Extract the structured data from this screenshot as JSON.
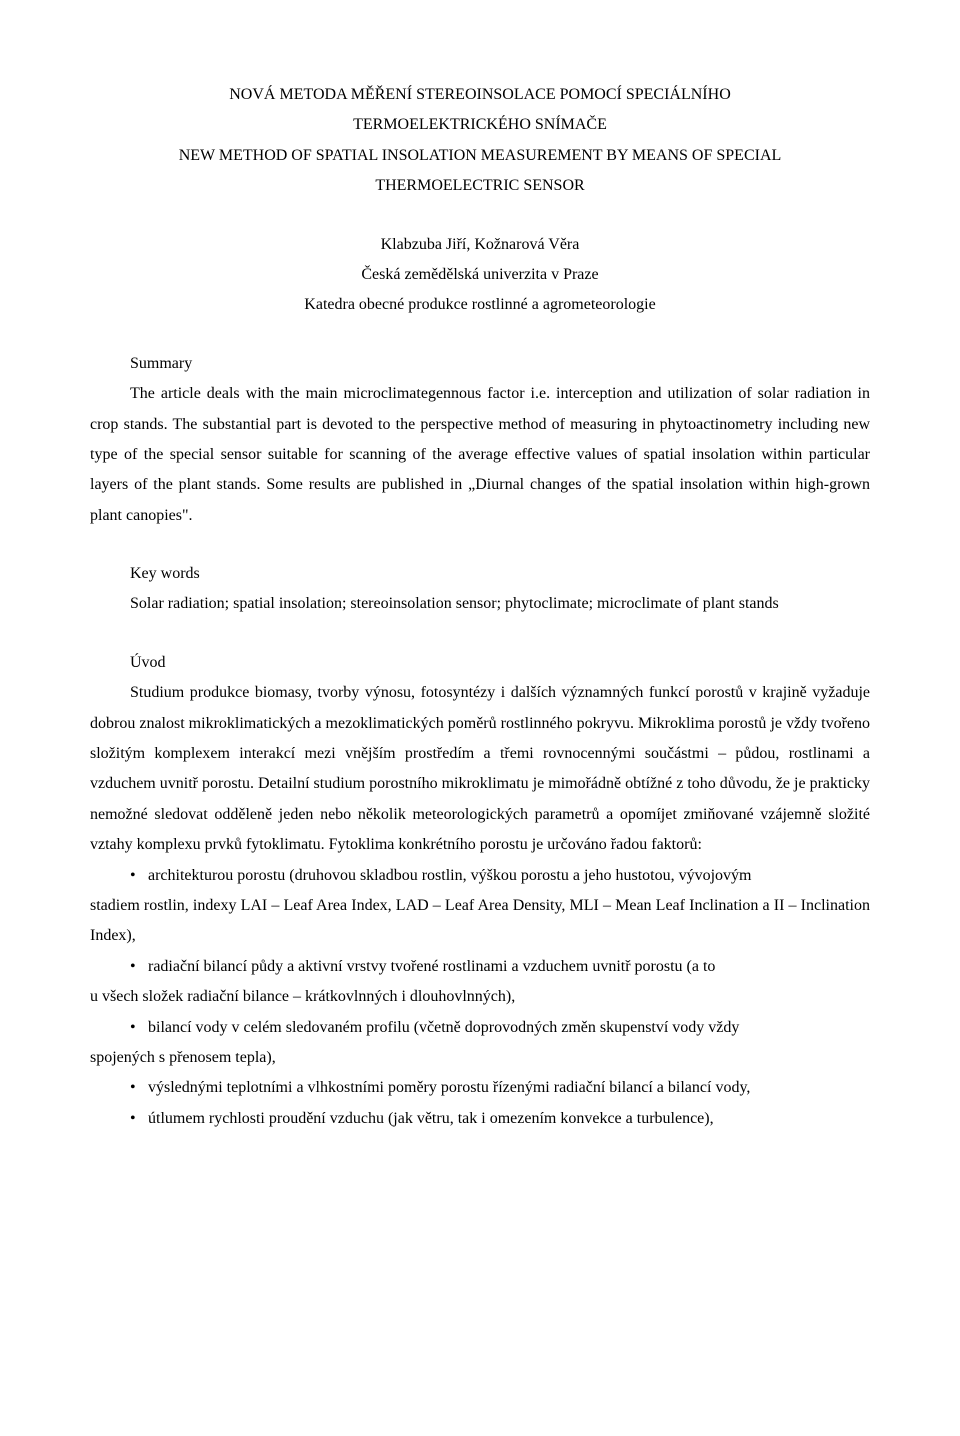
{
  "title": {
    "line1": "NOVÁ METODA MĚŘENÍ STEREOINSOLACE POMOCÍ SPECIÁLNÍHO",
    "line2": "TERMOELEKTRICKÉHO SNÍMAČE",
    "line3": "NEW METHOD OF SPATIAL INSOLATION MEASUREMENT BY MEANS OF SPECIAL",
    "line4": "THERMOELECTRIC SENSOR"
  },
  "authors": "Klabzuba Jiří, Kožnarová Věra",
  "affil": {
    "line1": "Česká zemědělská univerzita v Praze",
    "line2": "Katedra obecné produkce rostlinné a agrometeorologie"
  },
  "summary": {
    "heading": "Summary",
    "text": "The article deals with the main microclimategennous factor i.e. interception and utilization of solar radiation in crop stands. The substantial part is devoted to the perspective method of measuring in phytoactinometry including new type of the special sensor suitable for scanning of the average effective values of spatial insolation within particular layers of the plant stands. Some results are published in „Diurnal changes of the spatial insolation within high-grown plant canopies\"."
  },
  "keywords": {
    "heading": "Key words",
    "text": "Solar radiation; spatial insolation; stereoinsolation sensor; phytoclimate; microclimate of plant stands"
  },
  "uvod": {
    "heading": "Úvod",
    "p1": "Studium produkce biomasy, tvorby výnosu, fotosyntézy i dalších významných  funkcí porostů v krajině vyžaduje dobrou znalost mikroklimatických a mezoklimatických poměrů rostlinného pokryvu. Mikroklima porostů je vždy tvořeno složitým komplexem interakcí mezi vnějším prostředím a třemi rovnocennými součástmi – půdou, rostlinami a vzduchem uvnitř porostu. Detailní studium porostního mikroklimatu je mimořádně obtížné z toho důvodu, že je prakticky nemožné sledovat odděleně jeden nebo několik meteorologických parametrů a opomíjet zmiňované vzájemně složité vztahy komplexu prvků fytoklimatu. Fytoklima konkrétního porostu je určováno řadou faktorů:",
    "bullets": [
      {
        "lead": "architekturou porostu (druhovou skladbou rostlin, výškou porostu a jeho hustotou, vývojovým",
        "cont": "stadiem rostlin, indexy LAI – Leaf Area Index, LAD – Leaf Area Density, MLI – Mean Leaf Inclination a II – Inclination Index),"
      },
      {
        "lead": "radiační bilancí půdy a aktivní vrstvy tvořené rostlinami a vzduchem uvnitř porostu (a to",
        "cont": "u všech složek radiační bilance – krátkovlnných i dlouhovlnných),"
      },
      {
        "lead": "bilancí vody v celém sledovaném profilu (včetně doprovodných změn skupenství vody vždy",
        "cont": "spojených s přenosem tepla),"
      },
      {
        "lead": "výslednými teplotními a vlhkostními poměry porostu řízenými radiační bilancí a bilancí vody,",
        "cont": ""
      },
      {
        "lead": "útlumem rychlosti proudění vzduchu (jak větru, tak i omezením konvekce a turbulence),",
        "cont": ""
      }
    ]
  }
}
